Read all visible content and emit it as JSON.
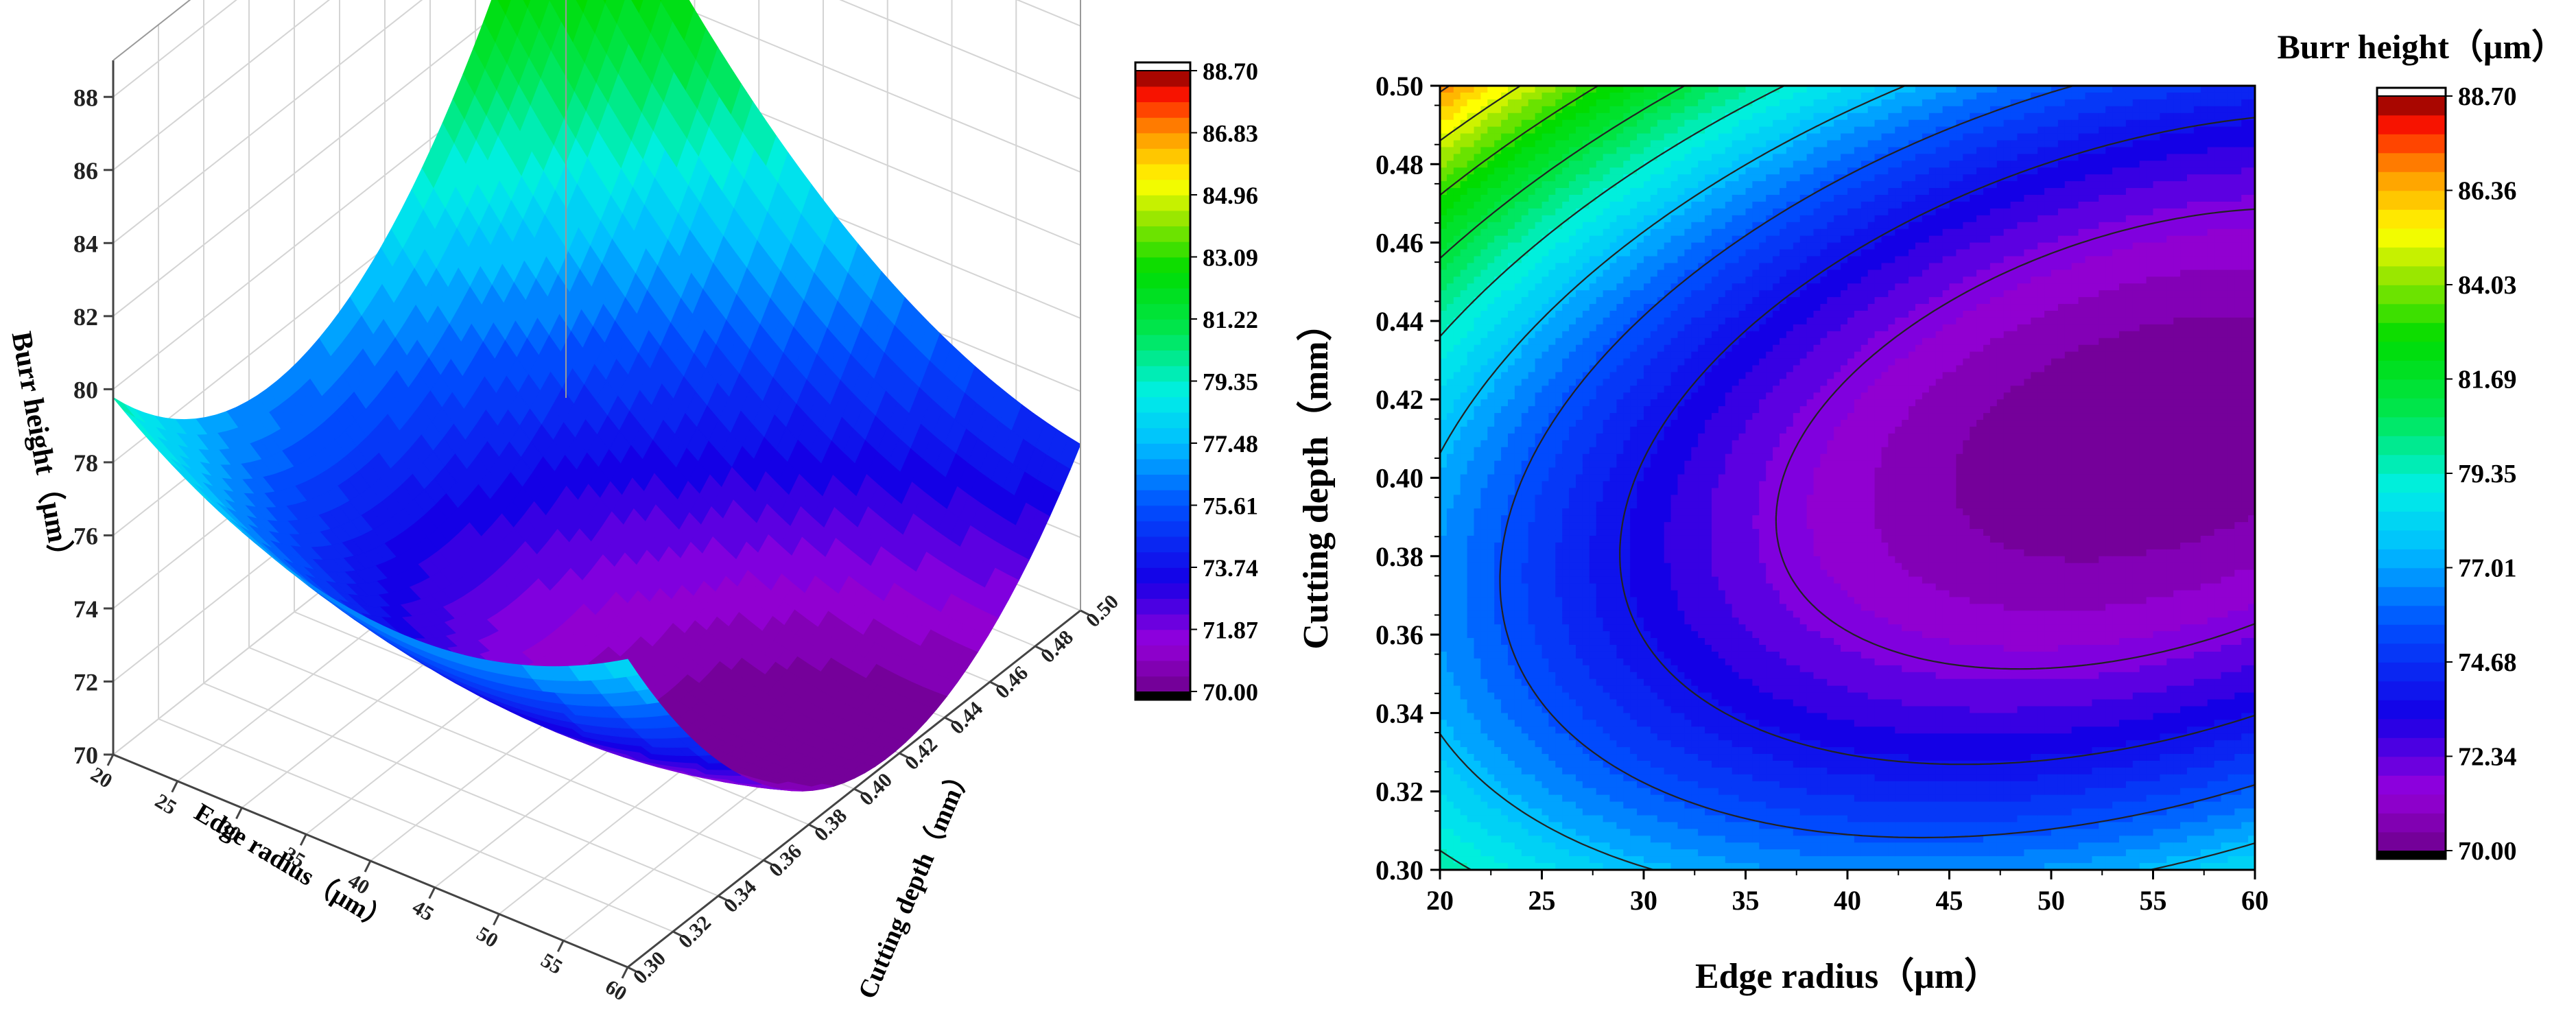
{
  "chart_data": [
    {
      "type": "surface3d",
      "z_label": "Burr height（μm）",
      "x_label": "Edge radius（μm）",
      "y_label": "Cutting depth（mm）",
      "x_ticks": [
        "20",
        "25",
        "30",
        "35",
        "40",
        "45",
        "50",
        "55",
        "60"
      ],
      "y_ticks": [
        "0.30",
        "0.32",
        "0.34",
        "0.36",
        "0.38",
        "0.40",
        "0.42",
        "0.44",
        "0.46",
        "0.48",
        "0.50"
      ],
      "z_ticks": [
        "70",
        "72",
        "74",
        "76",
        "78",
        "80",
        "82",
        "84",
        "86",
        "88"
      ],
      "xlim": [
        20,
        60
      ],
      "ylim": [
        0.3,
        0.5
      ],
      "zlim": [
        70,
        89
      ],
      "model": {
        "form": "quadratic",
        "x_center": 55,
        "x_half_range": 20,
        "y_center": 0.41,
        "y_half_range": 0.1,
        "z_min": 70.0,
        "coef_x2": 2.5,
        "coef_y2": 6.2,
        "coef_xy": -2.8
      },
      "colorbar": {
        "min": 70.0,
        "max": 88.7,
        "tick_labels": [
          "88.70",
          "86.83",
          "84.96",
          "83.09",
          "81.22",
          "79.35",
          "77.48",
          "75.61",
          "73.74",
          "71.87",
          "70.00"
        ]
      }
    },
    {
      "type": "contour",
      "xlabel": "Edge radius（μm）",
      "ylabel": "Cutting depth（mm）",
      "x_ticks": [
        "20",
        "25",
        "30",
        "35",
        "40",
        "45",
        "50",
        "55",
        "60"
      ],
      "y_ticks": [
        "0.30",
        "0.32",
        "0.34",
        "0.36",
        "0.38",
        "0.40",
        "0.42",
        "0.44",
        "0.46",
        "0.48",
        "0.50"
      ],
      "xlim": [
        20,
        60
      ],
      "ylim": [
        0.3,
        0.5
      ],
      "model_ref": "same quadratic model as surface",
      "contour_levels": [
        71.87,
        73.74,
        75.61,
        77.48,
        79.35,
        81.22,
        83.09,
        84.96,
        86.83
      ],
      "colorbar": {
        "title": "Burr height（μm）",
        "min": 70.0,
        "max": 88.7,
        "tick_labels": [
          "88.70",
          "86.36",
          "84.03",
          "81.69",
          "79.35",
          "77.01",
          "74.68",
          "72.34",
          "70.00"
        ]
      }
    }
  ]
}
